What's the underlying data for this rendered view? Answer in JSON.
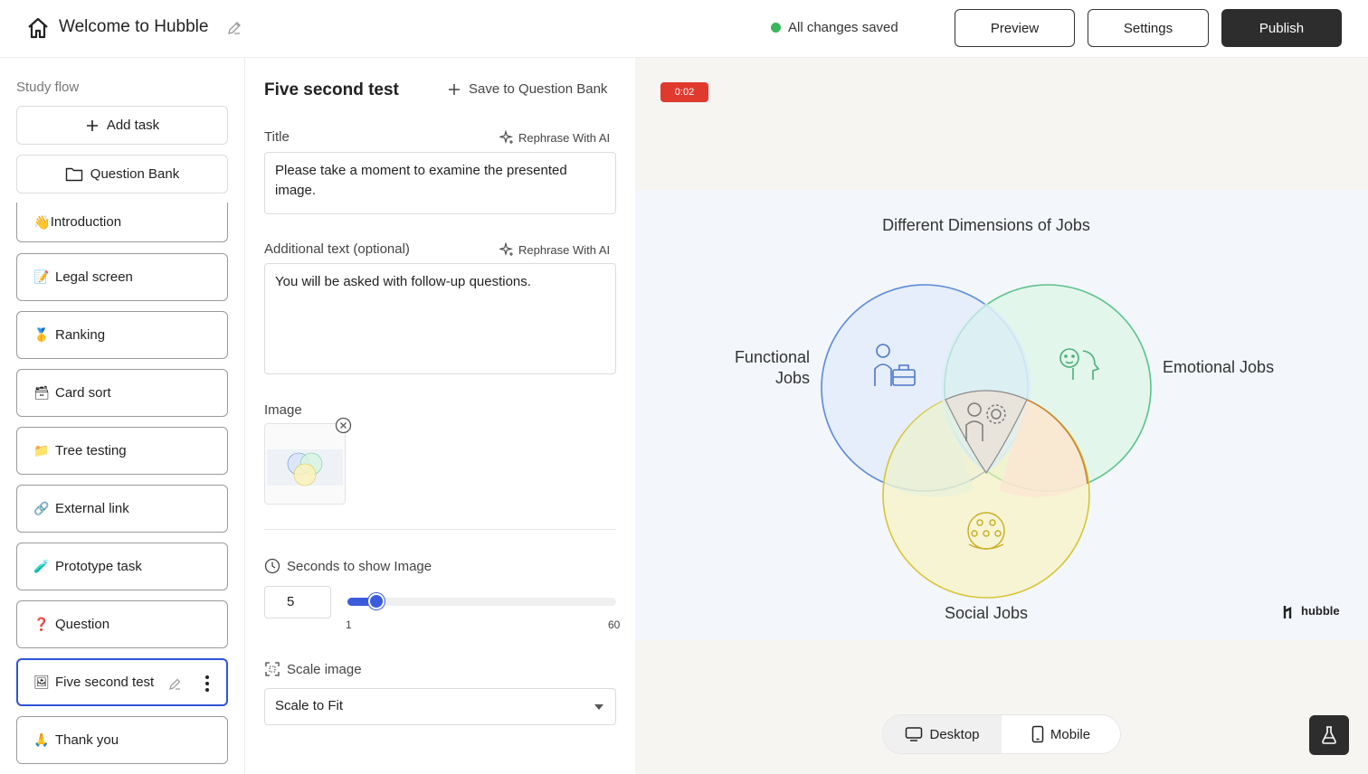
{
  "header": {
    "title": "Welcome to Hubble",
    "status": "All changes saved",
    "preview_label": "Preview",
    "settings_label": "Settings",
    "publish_label": "Publish"
  },
  "sidebar": {
    "title": "Study flow",
    "add_task": "Add task",
    "question_bank": "Question Bank",
    "tasks": [
      {
        "emoji": "👋",
        "label": "Introduction"
      },
      {
        "emoji": "📝",
        "label": "Legal screen"
      },
      {
        "emoji": "🥇",
        "label": "Ranking"
      },
      {
        "emoji": "🗃",
        "label": "Card sort"
      },
      {
        "emoji": "📁",
        "label": "Tree testing"
      },
      {
        "emoji": "🔗",
        "label": "External link"
      },
      {
        "emoji": "🧪",
        "label": "Prototype task"
      },
      {
        "emoji": "❓",
        "label": "Question"
      },
      {
        "emoji": "🖼",
        "label": "Five second test"
      },
      {
        "emoji": "🙏",
        "label": "Thank you"
      }
    ]
  },
  "editor": {
    "heading": "Five second test",
    "save_to_bank": "Save to Question Bank",
    "title_label": "Title",
    "rephrase": "Rephrase With AI",
    "title_value": "Please take a moment to examine the presented image.",
    "additional_label": "Additional text (optional)",
    "additional_value": "You will be asked with follow-up questions.",
    "image_label": "Image",
    "seconds_label": "Seconds to show Image",
    "seconds_value": "5",
    "slider_min": "1",
    "slider_max": "60",
    "scale_label": "Scale image",
    "scale_value": "Scale to Fit"
  },
  "preview": {
    "timer": "0:02",
    "desktop_label": "Desktop",
    "mobile_label": "Mobile",
    "venn": {
      "title": "Different Dimensions of Jobs",
      "functional_line1": "Functional",
      "functional_line2": "Jobs",
      "emotional": "Emotional Jobs",
      "social": "Social Jobs",
      "brand": "hubble"
    }
  },
  "colors": {
    "accent": "#2f55d4",
    "slider": "#3b5bdb",
    "timer": "#e03a2f",
    "dark_button": "#2d2d2d",
    "status_green": "#3bb55b"
  }
}
